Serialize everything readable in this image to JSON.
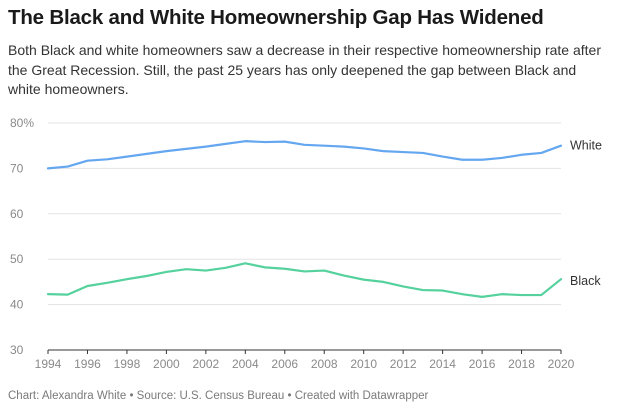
{
  "header": {
    "title": "The Black and White Homeownership Gap Has Widened",
    "subtitle": "Both Black and white homeowners saw a decrease in their respective homeownership rate after the Great Recession. Still, the past 25 years has only deepened the gap between Black and white homeowners."
  },
  "footer": {
    "notes": "Chart: Alexandra White • Source: U.S. Census Bureau • Created with Datawrapper"
  },
  "chart_data": {
    "type": "line",
    "title": "The Black and White Homeownership Gap Has Widened",
    "xlabel": "",
    "ylabel": "",
    "x": [
      1994,
      1995,
      1996,
      1997,
      1998,
      1999,
      2000,
      2001,
      2002,
      2003,
      2004,
      2005,
      2006,
      2007,
      2008,
      2009,
      2010,
      2011,
      2012,
      2013,
      2014,
      2015,
      2016,
      2017,
      2018,
      2019,
      2020
    ],
    "x_ticks": [
      "1994",
      "1996",
      "1998",
      "2000",
      "2002",
      "2004",
      "2006",
      "2008",
      "2010",
      "2012",
      "2014",
      "2016",
      "2018",
      "2020"
    ],
    "x_tick_values": [
      1994,
      1996,
      1998,
      2000,
      2002,
      2004,
      2006,
      2008,
      2010,
      2012,
      2014,
      2016,
      2018,
      2020
    ],
    "y_ticks": [
      "80%",
      "70",
      "60",
      "50",
      "40",
      "30"
    ],
    "y_tick_values": [
      80,
      70,
      60,
      50,
      40,
      30
    ],
    "ylim": [
      30,
      80
    ],
    "xlim": [
      1994,
      2020
    ],
    "grid": "horizontal",
    "series": [
      {
        "name": "White",
        "color": "#64a7f0",
        "values": [
          70.0,
          70.4,
          71.7,
          72.0,
          72.6,
          73.2,
          73.8,
          74.3,
          74.8,
          75.4,
          76.0,
          75.8,
          75.9,
          75.2,
          75.0,
          74.8,
          74.4,
          73.8,
          73.6,
          73.4,
          72.6,
          71.9,
          71.9,
          72.3,
          73.0,
          73.4,
          75.0
        ]
      },
      {
        "name": "Black",
        "color": "#54d19c",
        "values": [
          42.3,
          42.2,
          44.1,
          44.8,
          45.6,
          46.3,
          47.2,
          47.8,
          47.5,
          48.1,
          49.1,
          48.2,
          47.9,
          47.3,
          47.5,
          46.4,
          45.5,
          45.0,
          44.0,
          43.2,
          43.1,
          42.3,
          41.7,
          42.3,
          42.1,
          42.1,
          45.6
        ]
      }
    ]
  }
}
